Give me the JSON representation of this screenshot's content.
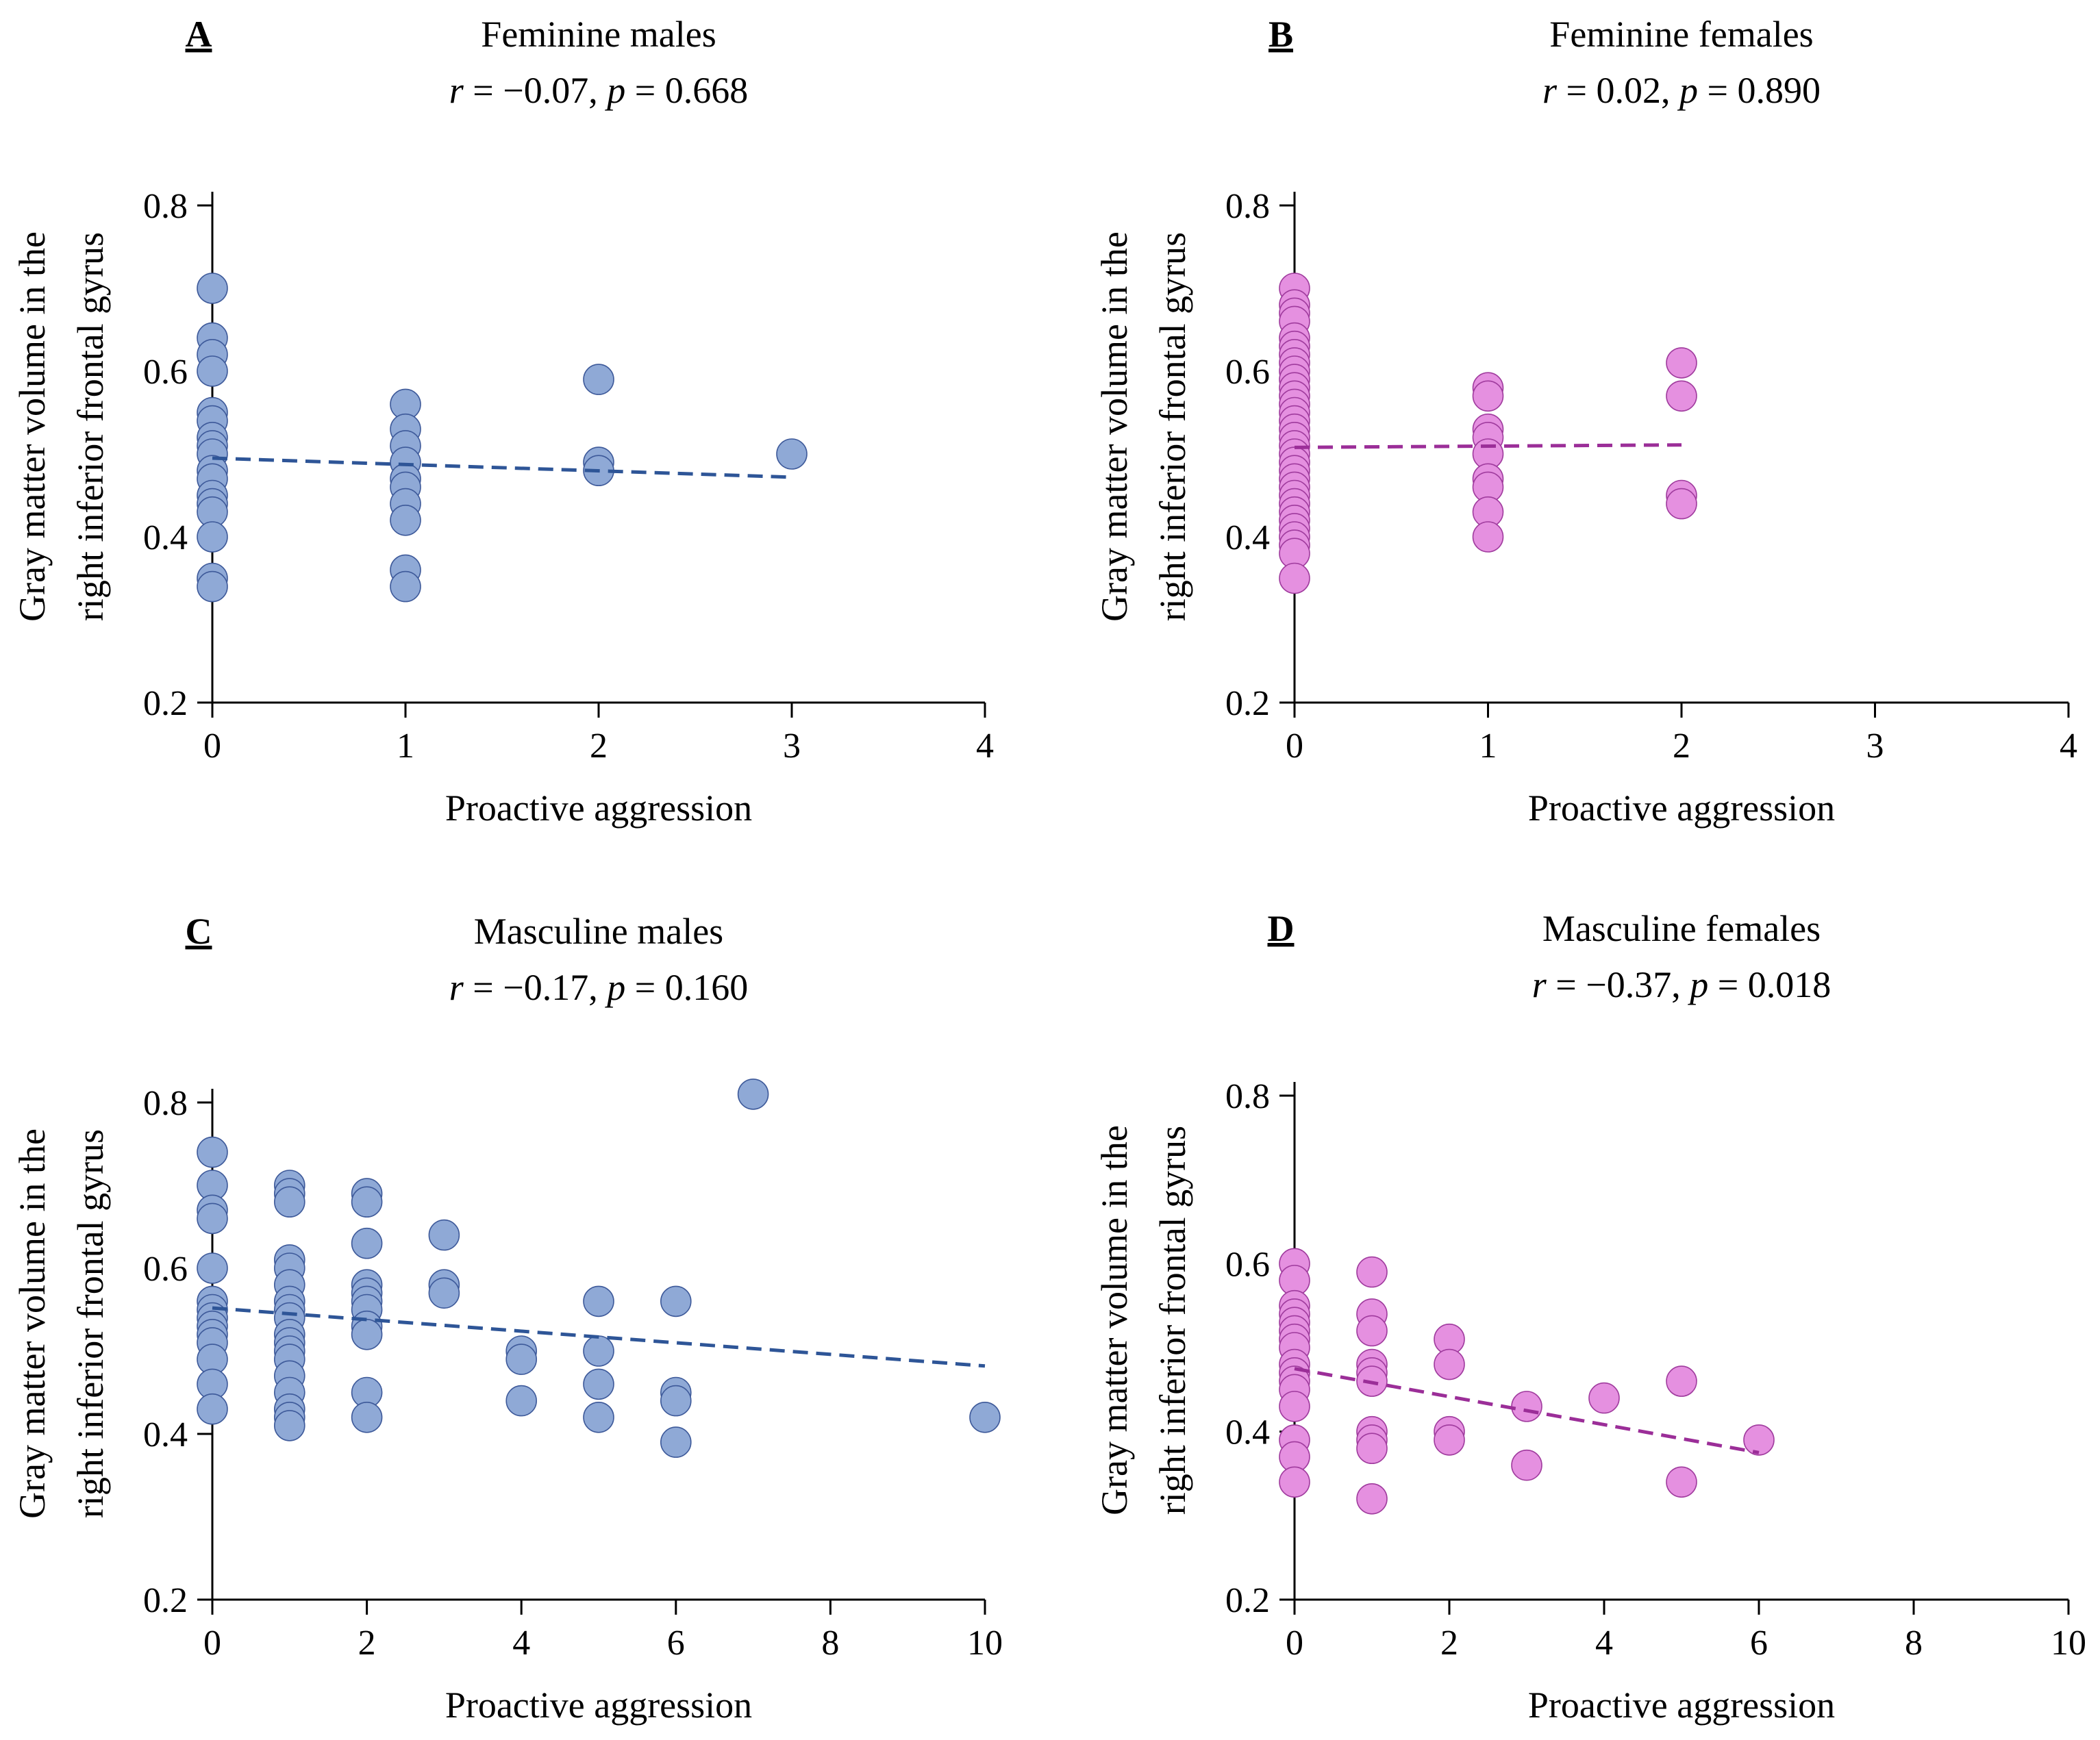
{
  "chart_data": [
    {
      "type": "scatter",
      "panel": "A",
      "title": "Feminine males",
      "stats": {
        "r": "−0.07",
        "p": "0.668"
      },
      "xlabel": "Proactive aggression",
      "ylabel": [
        "Gray matter volume in the",
        "right inferior frontal gyrus"
      ],
      "xlim": [
        0,
        4
      ],
      "xticks": [
        0,
        1,
        2,
        3,
        4
      ],
      "ylim": [
        0.2,
        0.8
      ],
      "yticks": [
        0.2,
        0.4,
        0.6,
        0.8
      ],
      "color": "#8fa9d6",
      "edge": "#3e5a9a",
      "line_color": "#2e5597",
      "trend": {
        "x0": 0,
        "y0": 0.495,
        "x1": 3,
        "y1": 0.472
      },
      "points": [
        [
          0,
          0.7
        ],
        [
          0,
          0.64
        ],
        [
          0,
          0.62
        ],
        [
          0,
          0.6
        ],
        [
          0,
          0.55
        ],
        [
          0,
          0.54
        ],
        [
          0,
          0.52
        ],
        [
          0,
          0.51
        ],
        [
          0,
          0.5
        ],
        [
          0,
          0.48
        ],
        [
          0,
          0.47
        ],
        [
          0,
          0.45
        ],
        [
          0,
          0.44
        ],
        [
          0,
          0.43
        ],
        [
          0,
          0.4
        ],
        [
          0,
          0.35
        ],
        [
          0,
          0.34
        ],
        [
          1,
          0.56
        ],
        [
          1,
          0.53
        ],
        [
          1,
          0.51
        ],
        [
          1,
          0.49
        ],
        [
          1,
          0.47
        ],
        [
          1,
          0.46
        ],
        [
          1,
          0.44
        ],
        [
          1,
          0.42
        ],
        [
          1,
          0.36
        ],
        [
          1,
          0.34
        ],
        [
          2,
          0.59
        ],
        [
          2,
          0.49
        ],
        [
          2,
          0.48
        ],
        [
          3,
          0.5
        ]
      ]
    },
    {
      "type": "scatter",
      "panel": "B",
      "title": "Feminine females",
      "stats": {
        "r": "0.02",
        "p": "0.890"
      },
      "xlabel": "Proactive aggression",
      "ylabel": [
        "Gray matter volume in the",
        "right inferior frontal gyrus"
      ],
      "xlim": [
        0,
        4
      ],
      "xticks": [
        0,
        1,
        2,
        3,
        4
      ],
      "ylim": [
        0.2,
        0.8
      ],
      "yticks": [
        0.2,
        0.4,
        0.6,
        0.8
      ],
      "color": "#e590e0",
      "edge": "#a03c9e",
      "line_color": "#9b2e98",
      "trend": {
        "x0": 0,
        "y0": 0.508,
        "x1": 2,
        "y1": 0.511
      },
      "points": [
        [
          0,
          0.7
        ],
        [
          0,
          0.68
        ],
        [
          0,
          0.67
        ],
        [
          0,
          0.66
        ],
        [
          0,
          0.64
        ],
        [
          0,
          0.63
        ],
        [
          0,
          0.62
        ],
        [
          0,
          0.61
        ],
        [
          0,
          0.6
        ],
        [
          0,
          0.59
        ],
        [
          0,
          0.58
        ],
        [
          0,
          0.57
        ],
        [
          0,
          0.56
        ],
        [
          0,
          0.55
        ],
        [
          0,
          0.54
        ],
        [
          0,
          0.53
        ],
        [
          0,
          0.52
        ],
        [
          0,
          0.51
        ],
        [
          0,
          0.5
        ],
        [
          0,
          0.49
        ],
        [
          0,
          0.48
        ],
        [
          0,
          0.47
        ],
        [
          0,
          0.46
        ],
        [
          0,
          0.45
        ],
        [
          0,
          0.44
        ],
        [
          0,
          0.43
        ],
        [
          0,
          0.42
        ],
        [
          0,
          0.41
        ],
        [
          0,
          0.4
        ],
        [
          0,
          0.39
        ],
        [
          0,
          0.38
        ],
        [
          0,
          0.35
        ],
        [
          1,
          0.58
        ],
        [
          1,
          0.57
        ],
        [
          1,
          0.53
        ],
        [
          1,
          0.52
        ],
        [
          1,
          0.5
        ],
        [
          1,
          0.47
        ],
        [
          1,
          0.46
        ],
        [
          1,
          0.43
        ],
        [
          1,
          0.4
        ],
        [
          2,
          0.61
        ],
        [
          2,
          0.57
        ],
        [
          2,
          0.45
        ],
        [
          2,
          0.44
        ]
      ]
    },
    {
      "type": "scatter",
      "panel": "C",
      "title": "Masculine males",
      "stats": {
        "r": "−0.17",
        "p": "0.160"
      },
      "xlabel": "Proactive aggression",
      "ylabel": [
        "Gray matter volume in the",
        "right inferior frontal gyrus"
      ],
      "xlim": [
        0,
        10
      ],
      "xticks": [
        0,
        2,
        4,
        6,
        8,
        10
      ],
      "ylim": [
        0.2,
        0.8
      ],
      "yticks": [
        0.2,
        0.4,
        0.6,
        0.8
      ],
      "color": "#8fa9d6",
      "edge": "#3e5a9a",
      "line_color": "#2e5597",
      "trend": {
        "x0": 0,
        "y0": 0.552,
        "x1": 10,
        "y1": 0.482
      },
      "points": [
        [
          0,
          0.74
        ],
        [
          0,
          0.7
        ],
        [
          0,
          0.67
        ],
        [
          0,
          0.66
        ],
        [
          0,
          0.6
        ],
        [
          0,
          0.56
        ],
        [
          0,
          0.55
        ],
        [
          0,
          0.54
        ],
        [
          0,
          0.53
        ],
        [
          0,
          0.52
        ],
        [
          0,
          0.51
        ],
        [
          0,
          0.49
        ],
        [
          0,
          0.46
        ],
        [
          0,
          0.43
        ],
        [
          1,
          0.7
        ],
        [
          1,
          0.69
        ],
        [
          1,
          0.68
        ],
        [
          1,
          0.61
        ],
        [
          1,
          0.6
        ],
        [
          1,
          0.58
        ],
        [
          1,
          0.56
        ],
        [
          1,
          0.55
        ],
        [
          1,
          0.54
        ],
        [
          1,
          0.52
        ],
        [
          1,
          0.51
        ],
        [
          1,
          0.5
        ],
        [
          1,
          0.49
        ],
        [
          1,
          0.47
        ],
        [
          1,
          0.45
        ],
        [
          1,
          0.43
        ],
        [
          1,
          0.42
        ],
        [
          1,
          0.41
        ],
        [
          2,
          0.69
        ],
        [
          2,
          0.68
        ],
        [
          2,
          0.63
        ],
        [
          2,
          0.58
        ],
        [
          2,
          0.57
        ],
        [
          2,
          0.56
        ],
        [
          2,
          0.55
        ],
        [
          2,
          0.53
        ],
        [
          2,
          0.52
        ],
        [
          2,
          0.45
        ],
        [
          2,
          0.42
        ],
        [
          3,
          0.64
        ],
        [
          3,
          0.58
        ],
        [
          3,
          0.57
        ],
        [
          4,
          0.5
        ],
        [
          4,
          0.49
        ],
        [
          4,
          0.44
        ],
        [
          5,
          0.56
        ],
        [
          5,
          0.5
        ],
        [
          5,
          0.46
        ],
        [
          5,
          0.42
        ],
        [
          6,
          0.56
        ],
        [
          6,
          0.45
        ],
        [
          6,
          0.44
        ],
        [
          6,
          0.39
        ],
        [
          7,
          0.81
        ],
        [
          10,
          0.42
        ]
      ]
    },
    {
      "type": "scatter",
      "panel": "D",
      "title": "Masculine females",
      "stats": {
        "r": "−0.37",
        "p": "0.018"
      },
      "xlabel": "Proactive aggression",
      "ylabel": [
        "Gray matter volume in the",
        "right inferior frontal gyrus"
      ],
      "xlim": [
        0,
        10
      ],
      "xticks": [
        0,
        2,
        4,
        6,
        8,
        10
      ],
      "ylim": [
        0.2,
        0.8
      ],
      "yticks": [
        0.2,
        0.4,
        0.6,
        0.8
      ],
      "color": "#e590e0",
      "edge": "#a03c9e",
      "line_color": "#9b2e98",
      "trend": {
        "x0": 0,
        "y0": 0.475,
        "x1": 6,
        "y1": 0.375
      },
      "points": [
        [
          0,
          0.6
        ],
        [
          0,
          0.58
        ],
        [
          0,
          0.55
        ],
        [
          0,
          0.54
        ],
        [
          0,
          0.53
        ],
        [
          0,
          0.52
        ],
        [
          0,
          0.51
        ],
        [
          0,
          0.5
        ],
        [
          0,
          0.48
        ],
        [
          0,
          0.47
        ],
        [
          0,
          0.46
        ],
        [
          0,
          0.45
        ],
        [
          0,
          0.43
        ],
        [
          0,
          0.39
        ],
        [
          0,
          0.37
        ],
        [
          0,
          0.34
        ],
        [
          1,
          0.59
        ],
        [
          1,
          0.54
        ],
        [
          1,
          0.52
        ],
        [
          1,
          0.48
        ],
        [
          1,
          0.47
        ],
        [
          1,
          0.46
        ],
        [
          1,
          0.4
        ],
        [
          1,
          0.39
        ],
        [
          1,
          0.38
        ],
        [
          1,
          0.32
        ],
        [
          2,
          0.51
        ],
        [
          2,
          0.48
        ],
        [
          2,
          0.4
        ],
        [
          2,
          0.39
        ],
        [
          3,
          0.43
        ],
        [
          3,
          0.36
        ],
        [
          4,
          0.44
        ],
        [
          5,
          0.46
        ],
        [
          5,
          0.34
        ],
        [
          6,
          0.39
        ]
      ]
    }
  ]
}
